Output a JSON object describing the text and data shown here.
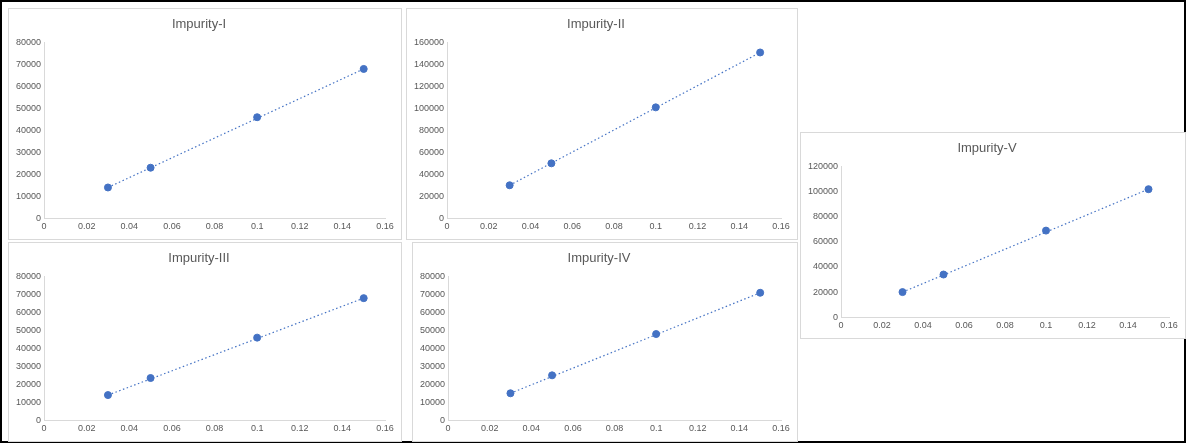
{
  "chart_data": [
    {
      "type": "scatter",
      "title": "Impurity-I",
      "xlim": [
        0,
        0.16
      ],
      "xticks": [
        0,
        0.02,
        0.04,
        0.06,
        0.08,
        0.1,
        0.12,
        0.14,
        0.16
      ],
      "ylim": [
        0,
        80000
      ],
      "yticks": [
        0,
        10000,
        20000,
        30000,
        40000,
        50000,
        60000,
        70000,
        80000
      ],
      "grid": false,
      "legend": false,
      "series": [
        {
          "type": "scatter",
          "color": "#4472c4",
          "marker": "circle",
          "x": [
            0.03,
            0.05,
            0.1,
            0.15
          ],
          "values": [
            14000,
            23000,
            46000,
            68000
          ]
        },
        {
          "type": "line",
          "color": "#4472c4",
          "marker": "none",
          "line_style": "dotted",
          "x": [
            0.03,
            0.15
          ],
          "values": [
            14000,
            68000
          ]
        }
      ]
    },
    {
      "type": "scatter",
      "title": "Impurity-II",
      "xlim": [
        0,
        0.16
      ],
      "xticks": [
        0,
        0.02,
        0.04,
        0.06,
        0.08,
        0.1,
        0.12,
        0.14,
        0.16
      ],
      "ylim": [
        0,
        160000
      ],
      "yticks": [
        0,
        20000,
        40000,
        60000,
        80000,
        100000,
        120000,
        140000,
        160000
      ],
      "grid": false,
      "legend": false,
      "series": [
        {
          "type": "scatter",
          "color": "#4472c4",
          "marker": "circle",
          "x": [
            0.03,
            0.05,
            0.1,
            0.15
          ],
          "values": [
            30000,
            50000,
            101000,
            151000
          ]
        },
        {
          "type": "line",
          "color": "#4472c4",
          "marker": "none",
          "line_style": "dotted",
          "x": [
            0.03,
            0.15
          ],
          "values": [
            30000,
            151000
          ]
        }
      ]
    },
    {
      "type": "scatter",
      "title": "Impurity-III",
      "xlim": [
        0,
        0.16
      ],
      "xticks": [
        0,
        0.02,
        0.04,
        0.06,
        0.08,
        0.1,
        0.12,
        0.14,
        0.16
      ],
      "ylim": [
        0,
        80000
      ],
      "yticks": [
        0,
        10000,
        20000,
        30000,
        40000,
        50000,
        60000,
        70000,
        80000
      ],
      "grid": false,
      "legend": false,
      "series": [
        {
          "type": "scatter",
          "color": "#4472c4",
          "marker": "circle",
          "x": [
            0.03,
            0.05,
            0.1,
            0.15
          ],
          "values": [
            14000,
            23500,
            46000,
            68000
          ]
        },
        {
          "type": "line",
          "color": "#4472c4",
          "marker": "none",
          "line_style": "dotted",
          "x": [
            0.03,
            0.15
          ],
          "values": [
            14000,
            68000
          ]
        }
      ]
    },
    {
      "type": "scatter",
      "title": "Impurity-IV",
      "xlim": [
        0,
        0.16
      ],
      "xticks": [
        0,
        0.02,
        0.04,
        0.06,
        0.08,
        0.1,
        0.12,
        0.14,
        0.16
      ],
      "ylim": [
        0,
        80000
      ],
      "yticks": [
        0,
        10000,
        20000,
        30000,
        40000,
        50000,
        60000,
        70000,
        80000
      ],
      "grid": false,
      "legend": false,
      "series": [
        {
          "type": "scatter",
          "color": "#4472c4",
          "marker": "circle",
          "x": [
            0.03,
            0.05,
            0.1,
            0.15
          ],
          "values": [
            15000,
            25000,
            48000,
            71000
          ]
        },
        {
          "type": "line",
          "color": "#4472c4",
          "marker": "none",
          "line_style": "dotted",
          "x": [
            0.03,
            0.15
          ],
          "values": [
            15000,
            71000
          ]
        }
      ]
    },
    {
      "type": "scatter",
      "title": "Impurity-V",
      "xlim": [
        0,
        0.16
      ],
      "xticks": [
        0,
        0.02,
        0.04,
        0.06,
        0.08,
        0.1,
        0.12,
        0.14,
        0.16
      ],
      "ylim": [
        0,
        120000
      ],
      "yticks": [
        0,
        20000,
        40000,
        60000,
        80000,
        100000,
        120000
      ],
      "grid": false,
      "legend": false,
      "series": [
        {
          "type": "scatter",
          "color": "#4472c4",
          "marker": "circle",
          "x": [
            0.03,
            0.05,
            0.1,
            0.15
          ],
          "values": [
            20000,
            34000,
            69000,
            102000
          ]
        },
        {
          "type": "line",
          "color": "#4472c4",
          "marker": "none",
          "line_style": "dotted",
          "x": [
            0.03,
            0.15
          ],
          "values": [
            20000,
            102000
          ]
        }
      ]
    }
  ]
}
